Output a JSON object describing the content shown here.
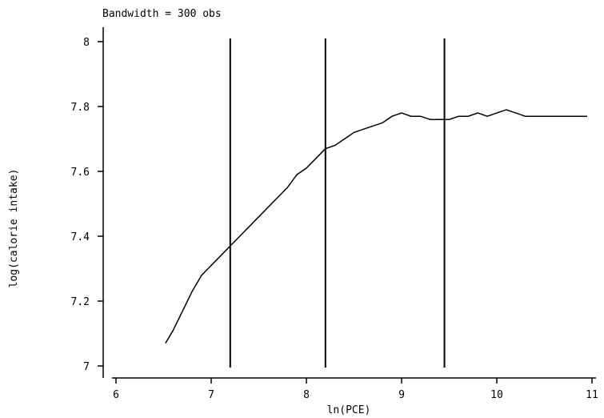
{
  "chart_data": {
    "type": "line",
    "title": "Bandwidth = 300 obs",
    "xlabel": "ln(PCE)",
    "ylabel": "log(calorie intake)",
    "xlim": [
      6,
      11
    ],
    "ylim": [
      7,
      8
    ],
    "xticks": [
      6,
      7,
      8,
      9,
      10,
      11
    ],
    "yticks": [
      7,
      7.2,
      7.4,
      7.6,
      7.8,
      8
    ],
    "xtick_labels": [
      "6",
      "7",
      "8",
      "9",
      "10",
      "11"
    ],
    "ytick_labels": [
      "7",
      "7.2",
      "7.4",
      "7.6",
      "7.8",
      "8"
    ],
    "grid": false,
    "vlines": [
      7.2,
      8.2,
      9.45
    ],
    "series": [
      {
        "x": [
          6.52,
          6.6,
          6.7,
          6.8,
          6.9,
          7.0,
          7.1,
          7.2,
          7.3,
          7.4,
          7.5,
          7.6,
          7.7,
          7.8,
          7.9,
          8.0,
          8.1,
          8.2,
          8.3,
          8.4,
          8.5,
          8.6,
          8.7,
          8.8,
          8.9,
          9.0,
          9.1,
          9.2,
          9.3,
          9.4,
          9.5,
          9.6,
          9.7,
          9.8,
          9.9,
          10.0,
          10.1,
          10.2,
          10.3,
          10.4,
          10.5,
          10.6,
          10.7,
          10.8,
          10.95
        ],
        "y": [
          7.07,
          7.11,
          7.17,
          7.23,
          7.28,
          7.31,
          7.34,
          7.37,
          7.4,
          7.43,
          7.46,
          7.49,
          7.52,
          7.55,
          7.59,
          7.61,
          7.64,
          7.67,
          7.68,
          7.7,
          7.72,
          7.73,
          7.74,
          7.75,
          7.77,
          7.78,
          7.77,
          7.77,
          7.76,
          7.76,
          7.76,
          7.77,
          7.77,
          7.78,
          7.77,
          7.78,
          7.79,
          7.78,
          7.77,
          7.77,
          7.77,
          7.77,
          7.77,
          7.77,
          7.77
        ]
      }
    ]
  }
}
